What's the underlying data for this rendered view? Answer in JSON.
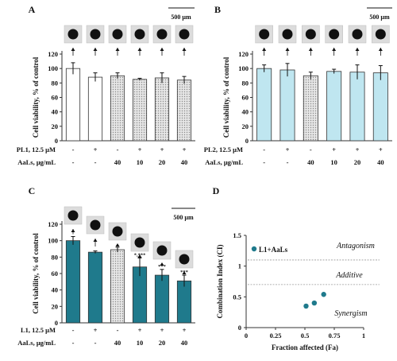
{
  "chart_data": [
    {
      "panel": "A",
      "type": "bar",
      "scale_bar": "500 µm",
      "ylabel": "Cell viability, % of control",
      "ylim": [
        0,
        120
      ],
      "yticks": [
        "0",
        "20",
        "40",
        "60",
        "80",
        "100",
        "120"
      ],
      "row_labels": [
        "PL1, 12.5 μM",
        "AaLs, μg/mL"
      ],
      "row1": [
        "-",
        "+",
        "-",
        "+",
        "+",
        "+"
      ],
      "row2": [
        "-",
        "-",
        "40",
        "10",
        "20",
        "40"
      ],
      "values": [
        100,
        88,
        90,
        85,
        87,
        84
      ],
      "errors": [
        8,
        6,
        4,
        1.5,
        7,
        5
      ],
      "stars": [
        "",
        "",
        "",
        "",
        "",
        ""
      ],
      "colors": [
        "#ffffff",
        "#ffffff",
        "#cfcfcf",
        "#cfcfcf",
        "#cfcfcf",
        "#cfcfcf"
      ]
    },
    {
      "panel": "B",
      "type": "bar",
      "scale_bar": "500 µm",
      "ylabel": "Cell viability, % of control",
      "ylim": [
        0,
        120
      ],
      "yticks": [
        "0",
        "20",
        "40",
        "60",
        "80",
        "100",
        "120"
      ],
      "row_labels": [
        "PL2, 12.5 μM",
        "AaLs, μg/mL"
      ],
      "row1": [
        "-",
        "+",
        "-",
        "+",
        "+",
        "+"
      ],
      "row2": [
        "-",
        "-",
        "40",
        "10",
        "20",
        "40"
      ],
      "values": [
        100,
        98,
        90,
        96,
        95,
        94
      ],
      "errors": [
        5,
        9,
        5,
        3,
        10,
        10
      ],
      "stars": [
        "",
        "",
        "",
        "",
        "",
        ""
      ],
      "colors": [
        "#bfe6f0",
        "#bfe6f0",
        "#cfcfcf",
        "#bfe6f0",
        "#bfe6f0",
        "#bfe6f0"
      ]
    },
    {
      "panel": "C",
      "type": "bar",
      "scale_bar": "500 µm",
      "ylabel": "Cell viability, % of control",
      "ylim": [
        0,
        120
      ],
      "yticks": [
        "0",
        "20",
        "40",
        "60",
        "80",
        "100",
        "120"
      ],
      "row_labels": [
        "L1, 12.5 μM",
        "AaLs, μg/mL"
      ],
      "row1": [
        "-",
        "+",
        "-",
        "+",
        "+",
        "+"
      ],
      "row2": [
        "-",
        "-",
        "40",
        "10",
        "20",
        "40"
      ],
      "values": [
        100,
        86,
        89,
        68,
        58,
        51
      ],
      "errors": [
        5,
        1.5,
        3,
        11,
        7,
        7
      ],
      "stars": [
        "",
        "",
        "",
        "*,***",
        "***",
        "***"
      ],
      "colors": [
        "#1f7a8c",
        "#1f7a8c",
        "#cfcfcf",
        "#1f7a8c",
        "#1f7a8c",
        "#1f7a8c"
      ]
    },
    {
      "panel": "D",
      "type": "scatter",
      "xlabel": "Fraction affected (Fa)",
      "ylabel": "Combination Index (CI)",
      "xlim": [
        0,
        1
      ],
      "ylim": [
        0,
        1.5
      ],
      "xticks": [
        "0",
        "0.25",
        "0.5",
        "0.75",
        "1"
      ],
      "yticks": [
        "0",
        "0.5",
        "1",
        "1.5"
      ],
      "series": [
        {
          "name": "L1+AaLs",
          "x": [
            0.51,
            0.58,
            0.66
          ],
          "y": [
            0.35,
            0.4,
            0.54
          ]
        }
      ],
      "reference_lines": [
        1.1,
        0.7
      ],
      "regions": [
        "Antagonism",
        "Additive",
        "Synergism"
      ],
      "color": "#1f7a8c"
    }
  ]
}
